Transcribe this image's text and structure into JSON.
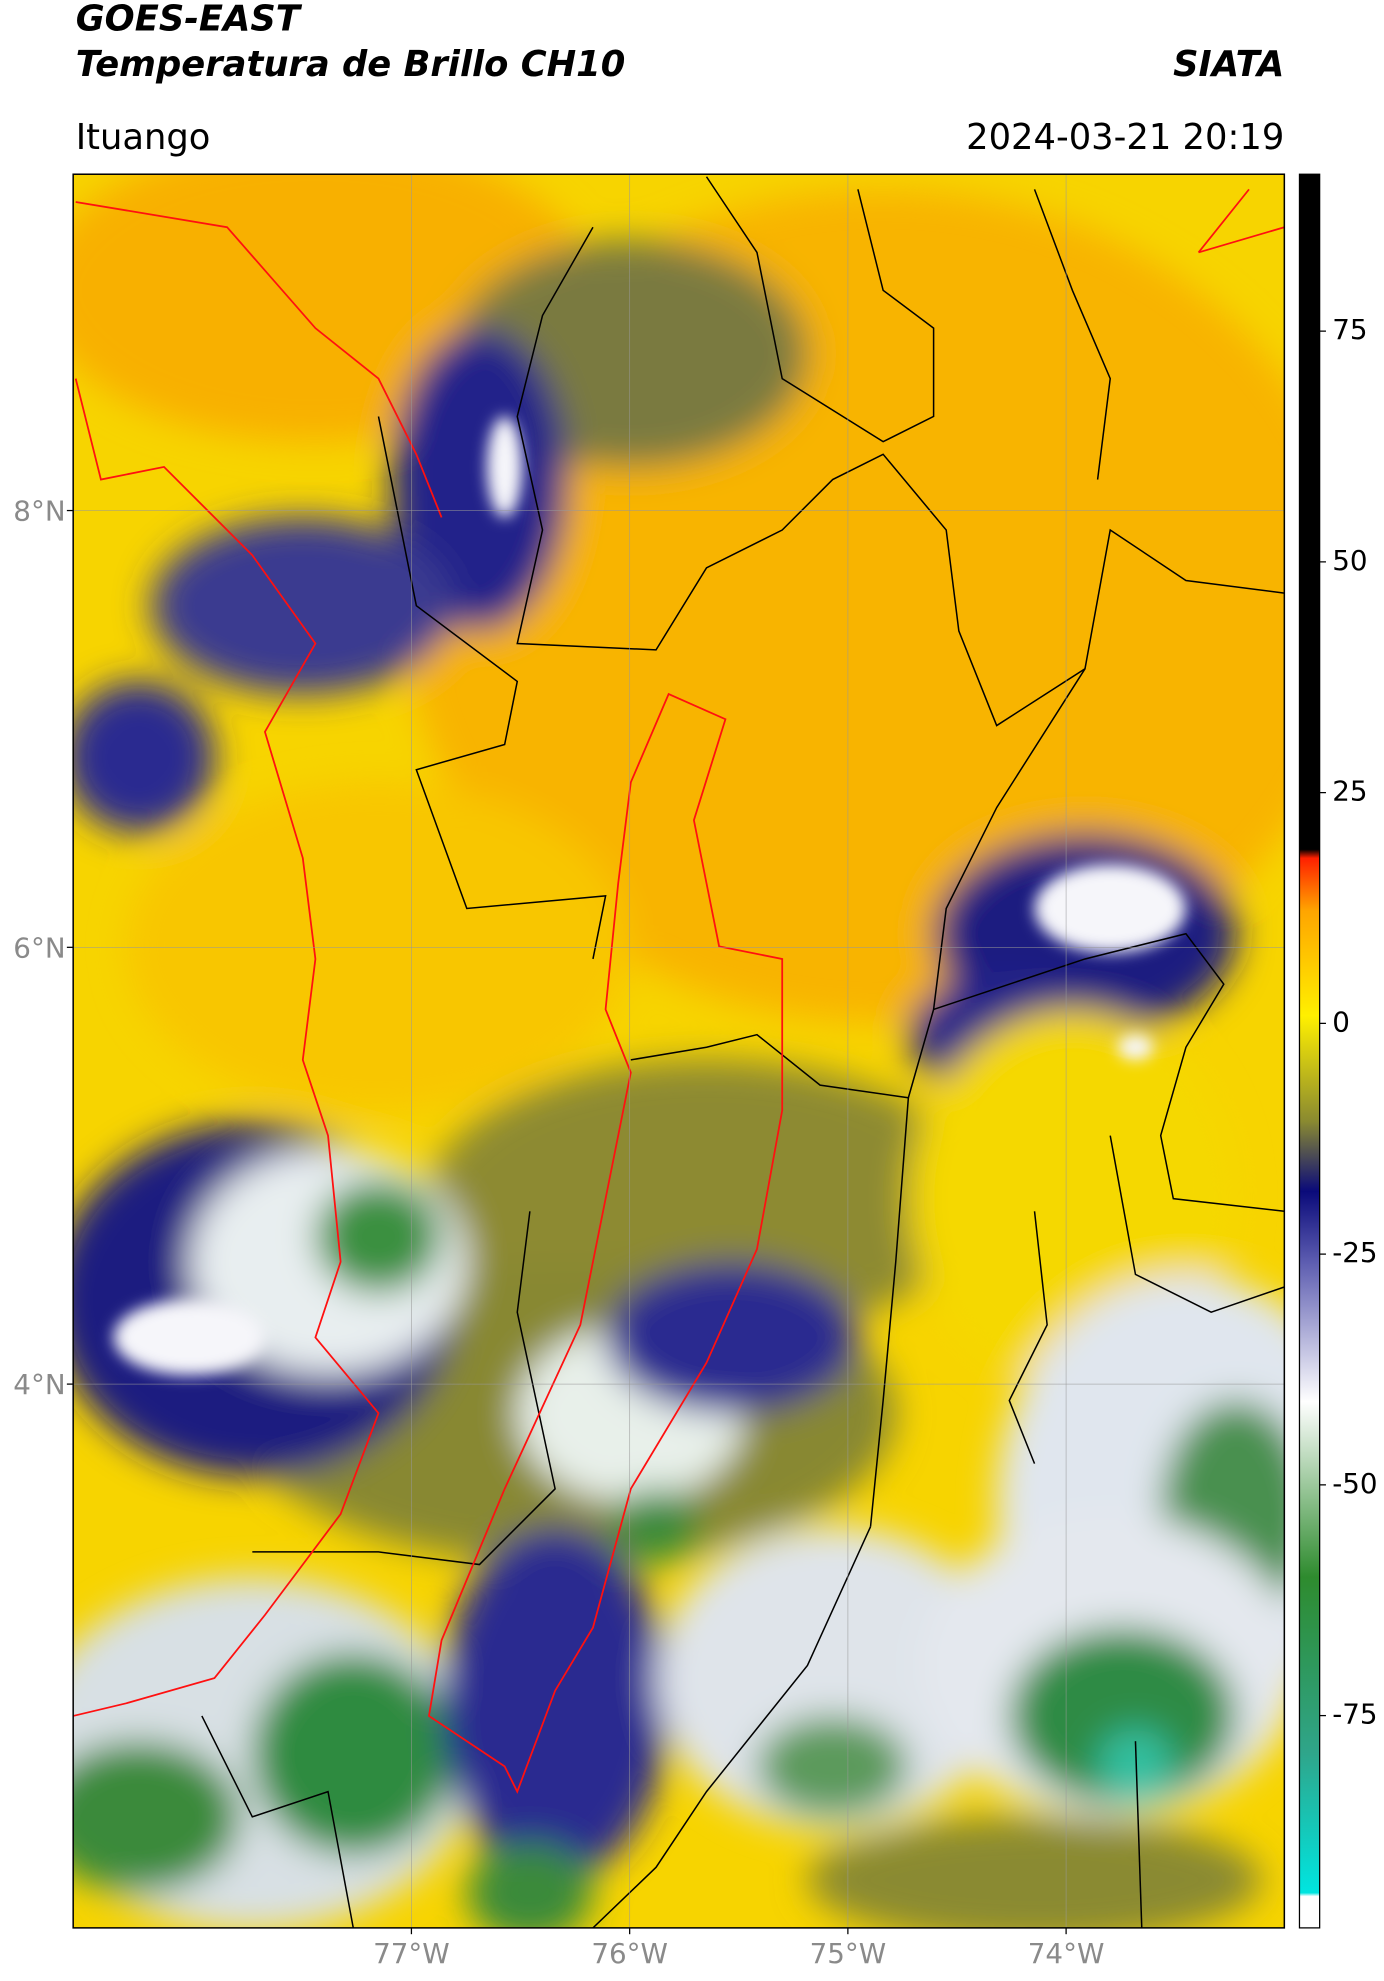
{
  "header": {
    "title_line1": "GOES-EAST",
    "title_line2": "Temperatura de Brillo CH10",
    "organization": "SIATA",
    "location": "Ituango",
    "datetime": "2024-03-21 20:19"
  },
  "map": {
    "lat_lim": [
      1.51,
      9.54
    ],
    "lon_lim": [
      -78.55,
      -73.0
    ],
    "lat_ticks": [
      {
        "value": 8,
        "label": "8°N"
      },
      {
        "value": 6,
        "label": "6°N"
      },
      {
        "value": 4,
        "label": "4°N"
      }
    ],
    "lon_ticks": [
      {
        "value": -77,
        "label": "77°W"
      },
      {
        "value": -76,
        "label": "76°W"
      },
      {
        "value": -75,
        "label": "75°W"
      },
      {
        "value": -74,
        "label": "74°W"
      }
    ],
    "grid": true
  },
  "colorbar": {
    "lim": [
      -98,
      92
    ],
    "ticks": [
      75,
      50,
      25,
      0,
      -25,
      -50,
      -75
    ]
  }
}
